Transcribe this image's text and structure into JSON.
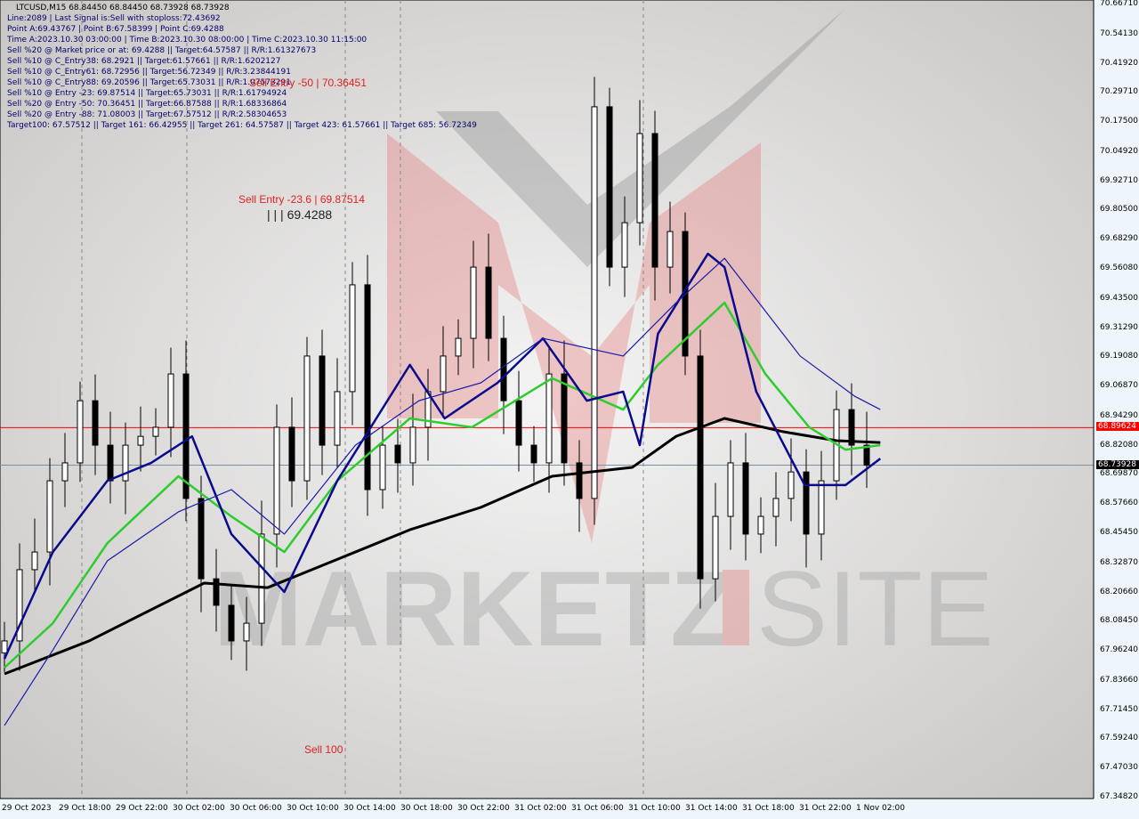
{
  "info": {
    "title": "LTCUSD,M15  68.84450 68.84450 68.73928 68.73928",
    "lines": [
      "Line:2089 | Last Signal is:Sell with stoploss:72.43692",
      "Point A:69.43767 | Point B:67.58399 | Point C:69.4288",
      "Time A:2023.10.30 03:00:00 | Time B:2023.10.30 08:00:00 | Time C:2023.10.30 11:15:00",
      "Sell %20 @ Market price or at: 69.4288 || Target:64.57587 || R/R:1.61327673",
      "Sell %10 @ C_Entry38: 68.2921 || Target:61.57661 || R/R:1.6202127",
      "Sell %10 @ C_Entry61: 68.72956 || Target:56.72349 || R/R:3.23844191",
      "Sell %10 @ C_Entry88: 69.20596 || Target:65.73031 || R/R:1.07573291",
      "Sell %10 @ Entry -23: 69.87514 || Target:65.73031 || R/R:1.61794924",
      "Sell %20 @ Entry -50: 70.36451 || Target:66.87588 || R/R:1.68336864",
      "Sell %20 @ Entry -88: 71.08003 || Target:67.57512 || R/R:2.58304653",
      "Target100: 67.57512 || Target 161: 66.42955 || Target 261: 64.57587 || Target 423: 61.57661 || Target 685: 56.72349"
    ]
  },
  "annotations": {
    "sell_entry_50": "Sell Entry -50 | 70.36451",
    "sell_entry_236": "Sell Entry -23.6 | 69.87514",
    "point_c": "| | | 69.4288",
    "sell_100": "Sell 100"
  },
  "watermark": "MARKETZ SITE",
  "colors": {
    "up": "#000000",
    "down": "#000000",
    "ma_slow": "#000000",
    "ma_green": "#2ecc2e",
    "ma_navy": "#0a0a8c",
    "ma_blue": "#1a1aa8",
    "red_line": "#ff0000",
    "price_line": "#7890a8"
  },
  "chart_data": {
    "type": "candlestick",
    "symbol": "LTCUSD,M15",
    "ylim": [
      67.3482,
      70.6671
    ],
    "yticks": [
      "70.66710",
      "70.54130",
      "70.41920",
      "70.29710",
      "70.17500",
      "70.04920",
      "69.92710",
      "69.80500",
      "69.68290",
      "69.56080",
      "69.43500",
      "69.31290",
      "69.19080",
      "69.06870",
      "68.94290",
      "68.82080",
      "68.69870",
      "68.57660",
      "68.45450",
      "68.32870",
      "68.20660",
      "68.08450",
      "67.96240",
      "67.83660",
      "67.71450",
      "67.59240",
      "67.47030",
      "67.34820"
    ],
    "xticks": [
      "29 Oct 2023",
      "29 Oct 18:00",
      "29 Oct 22:00",
      "30 Oct 02:00",
      "30 Oct 06:00",
      "30 Oct 10:00",
      "30 Oct 14:00",
      "30 Oct 18:00",
      "30 Oct 22:00",
      "31 Oct 02:00",
      "31 Oct 06:00",
      "31 Oct 10:00",
      "31 Oct 14:00",
      "31 Oct 18:00",
      "31 Oct 22:00",
      "1 Nov 02:00"
    ],
    "closes": [
      68.004,
      68.302,
      68.376,
      68.674,
      68.749,
      69.009,
      68.823,
      68.674,
      68.823,
      68.86,
      68.898,
      69.121,
      68.6,
      68.264,
      68.153,
      68.004,
      68.078,
      68.451,
      68.898,
      68.674,
      69.196,
      68.823,
      69.047,
      69.494,
      68.637,
      68.823,
      68.749,
      68.898,
      69.047,
      69.196,
      69.27,
      69.568,
      69.27,
      69.009,
      68.823,
      68.749,
      69.121,
      68.749,
      68.6,
      70.239,
      69.568,
      69.754,
      70.127,
      69.568,
      69.717,
      69.196,
      68.264,
      68.525,
      68.749,
      68.451,
      68.525,
      68.6,
      68.711,
      68.451,
      68.674,
      68.972,
      68.823,
      68.739
    ],
    "lines": [
      {
        "key": "ma_slow",
        "points": [
          [
            0,
            67.866
          ],
          [
            5.6,
            68.004
          ],
          [
            13.2,
            68.246
          ],
          [
            17.4,
            68.227
          ],
          [
            23.2,
            68.376
          ],
          [
            26.8,
            68.469
          ],
          [
            31.5,
            68.563
          ],
          [
            36.2,
            68.693
          ],
          [
            41.5,
            68.73
          ],
          [
            44.4,
            68.86
          ],
          [
            47.6,
            68.935
          ],
          [
            51.5,
            68.879
          ],
          [
            55,
            68.842
          ],
          [
            57.9,
            68.834
          ]
        ]
      },
      {
        "key": "ma_green",
        "points": [
          [
            0,
            67.892
          ],
          [
            3.2,
            68.078
          ],
          [
            6.8,
            68.413
          ],
          [
            11.5,
            68.693
          ],
          [
            15,
            68.525
          ],
          [
            18.5,
            68.376
          ],
          [
            22,
            68.674
          ],
          [
            26.8,
            68.935
          ],
          [
            30.9,
            68.898
          ],
          [
            36.2,
            69.103
          ],
          [
            40.9,
            68.972
          ],
          [
            43.2,
            69.159
          ],
          [
            47.6,
            69.419
          ],
          [
            50.3,
            69.121
          ],
          [
            53.2,
            68.898
          ],
          [
            55.6,
            68.804
          ],
          [
            57.9,
            68.823
          ]
        ]
      },
      {
        "key": "ma_navy",
        "points": [
          [
            0,
            67.929
          ],
          [
            3.2,
            68.376
          ],
          [
            6.8,
            68.674
          ],
          [
            9.7,
            68.749
          ],
          [
            12.4,
            68.86
          ],
          [
            15,
            68.451
          ],
          [
            18.5,
            68.209
          ],
          [
            22,
            68.674
          ],
          [
            26.8,
            69.159
          ],
          [
            29.1,
            68.935
          ],
          [
            32.6,
            69.084
          ],
          [
            35.6,
            69.27
          ],
          [
            38.5,
            69.009
          ],
          [
            40.9,
            69.047
          ],
          [
            42,
            68.823
          ],
          [
            43.2,
            69.289
          ],
          [
            46.5,
            69.624
          ],
          [
            47.6,
            69.568
          ],
          [
            49.7,
            69.047
          ],
          [
            52.9,
            68.656
          ],
          [
            55.6,
            68.656
          ],
          [
            57.9,
            68.767
          ]
        ]
      },
      {
        "key": "ma_blue",
        "points": [
          [
            0,
            67.65
          ],
          [
            3.2,
            67.966
          ],
          [
            6.8,
            68.339
          ],
          [
            11.5,
            68.544
          ],
          [
            15,
            68.637
          ],
          [
            18.5,
            68.451
          ],
          [
            23.2,
            68.823
          ],
          [
            27.4,
            69.009
          ],
          [
            31.5,
            69.084
          ],
          [
            35.6,
            69.27
          ],
          [
            40.9,
            69.196
          ],
          [
            44.4,
            69.419
          ],
          [
            47.6,
            69.605
          ],
          [
            52.6,
            69.196
          ],
          [
            56.2,
            69.028
          ],
          [
            57.9,
            68.972
          ]
        ]
      }
    ],
    "hlines": [
      {
        "value": 68.89624,
        "label": "68.89624",
        "key": "red_line"
      },
      {
        "value": 68.73928,
        "label": "68.73928",
        "key": "price_line"
      }
    ]
  }
}
